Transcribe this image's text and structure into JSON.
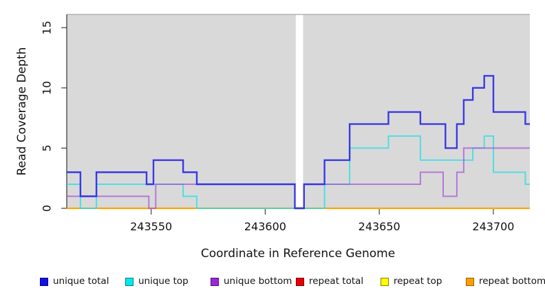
{
  "figure": {
    "background": "#FFFFFF",
    "panel_background": "#D9D9D9",
    "panel_top_border": "#A6A6A6",
    "axis_color": "#3F3F3F",
    "text_color": "#111111"
  },
  "chart_data": {
    "type": "line",
    "subtype": "step",
    "title": "",
    "xlabel": "Coordinate in Reference Genome",
    "ylabel": "Read Coverage Depth",
    "xlim": [
      243513,
      243716
    ],
    "ylim": [
      0,
      16.1
    ],
    "x_ticks": [
      243550,
      243600,
      243650,
      243700
    ],
    "y_ticks": [
      0,
      5,
      10,
      15
    ],
    "grid": false,
    "legend_position": "bottom",
    "gap_region": {
      "x_start": 243613.4,
      "x_end": 243616.6
    },
    "series": [
      {
        "name": "repeat total",
        "color": "#DD0000",
        "opacity": 1,
        "width": 2,
        "steps": [
          [
            243513,
            0
          ],
          [
            243716,
            0
          ]
        ]
      },
      {
        "name": "repeat top",
        "color": "#FFFF00",
        "opacity": 1,
        "width": 2,
        "steps": [
          [
            243513,
            0
          ],
          [
            243716,
            0
          ]
        ]
      },
      {
        "name": "repeat bottom",
        "color": "#FFA500",
        "opacity": 1,
        "width": 2.2,
        "steps": [
          [
            243513,
            0
          ],
          [
            243716,
            0
          ]
        ]
      },
      {
        "name": "unique top",
        "color": "#22DDE8",
        "opacity": 0.75,
        "width": 2,
        "steps": [
          [
            243513,
            2
          ],
          [
            243519,
            0
          ],
          [
            243526,
            2
          ],
          [
            243564,
            1
          ],
          [
            243570,
            0
          ],
          [
            243626,
            2
          ],
          [
            243637,
            5
          ],
          [
            243654,
            6
          ],
          [
            243668,
            4
          ],
          [
            243691,
            5
          ],
          [
            243696,
            6
          ],
          [
            243700,
            3
          ],
          [
            243714,
            2
          ],
          [
            243716,
            2
          ]
        ]
      },
      {
        "name": "unique bottom",
        "color": "#A44FD8",
        "opacity": 0.7,
        "width": 2,
        "steps": [
          [
            243513,
            1
          ],
          [
            243549,
            0
          ],
          [
            243552,
            2
          ],
          [
            243668,
            3
          ],
          [
            243678,
            1
          ],
          [
            243684,
            3
          ],
          [
            243687,
            5
          ],
          [
            243716,
            5
          ]
        ]
      },
      {
        "name": "unique total",
        "color": "#2B2BE8",
        "opacity": 0.92,
        "width": 2.4,
        "steps": [
          [
            243513,
            3
          ],
          [
            243519,
            1
          ],
          [
            243526,
            3
          ],
          [
            243548,
            2
          ],
          [
            243551,
            4
          ],
          [
            243564,
            3
          ],
          [
            243570,
            2
          ],
          [
            243613,
            0
          ],
          [
            243617,
            2
          ],
          [
            243626,
            4
          ],
          [
            243637,
            7
          ],
          [
            243654,
            8
          ],
          [
            243668,
            7
          ],
          [
            243679,
            5
          ],
          [
            243684,
            7
          ],
          [
            243687,
            9
          ],
          [
            243691,
            10
          ],
          [
            243696,
            11
          ],
          [
            243700,
            8
          ],
          [
            243714,
            7
          ],
          [
            243716,
            7
          ]
        ]
      }
    ]
  },
  "legend": {
    "items": [
      {
        "label": "unique total",
        "fill": "#1212E0",
        "border": "#000090"
      },
      {
        "label": "unique top",
        "fill": "#00E8F0",
        "border": "#007A85"
      },
      {
        "label": "unique bottom",
        "fill": "#9928D8",
        "border": "#550880"
      },
      {
        "label": "repeat total",
        "fill": "#E80000",
        "border": "#7A0000"
      },
      {
        "label": "repeat top",
        "fill": "#FFFF00",
        "border": "#808000"
      },
      {
        "label": "repeat bottom",
        "fill": "#FFA000",
        "border": "#905E00"
      }
    ]
  }
}
